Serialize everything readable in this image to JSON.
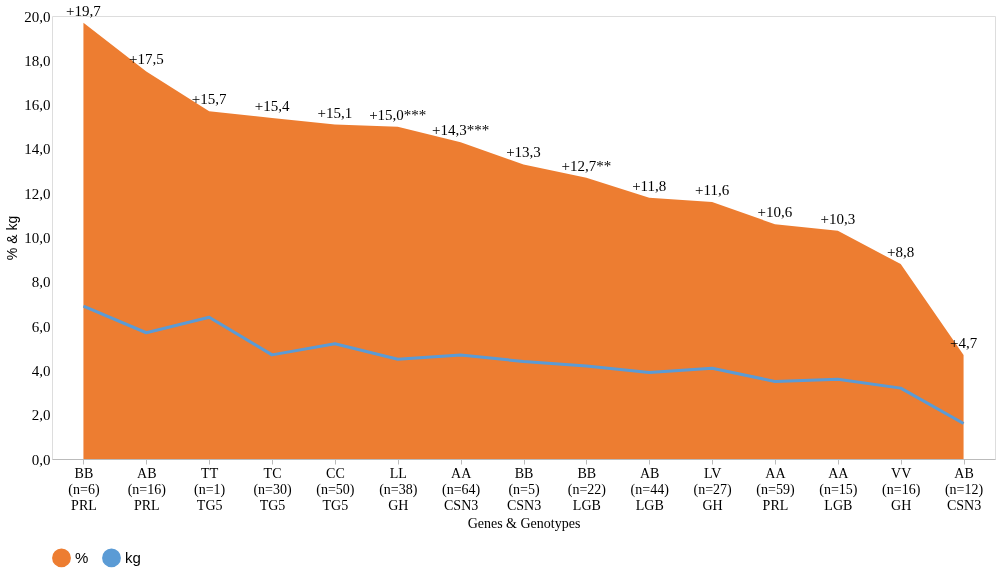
{
  "chart_data": {
    "type": "area",
    "xlabel": "Genes & Genotypes",
    "ylabel": "% & kg",
    "categories": [
      "BB (n=6) PRL",
      "AB (n=16) PRL",
      "TT (n=1) TG5",
      "TC (n=30) TG5",
      "CC (n=50) TG5",
      "LL (n=38) GH",
      "AA (n=64) CSN3",
      "BB (n=5) CSN3",
      "BB (n=22) LGB",
      "AB (n=44) LGB",
      "LV (n=27) GH",
      "AA (n=59) PRL",
      "AA (n=15) LGB",
      "VV (n=16) GH",
      "AB (n=12) CSN3"
    ],
    "series": [
      {
        "name": "%",
        "color": "#ed7d31",
        "values": [
          19.7,
          17.5,
          15.7,
          15.4,
          15.1,
          15.0,
          14.3,
          13.3,
          12.7,
          11.8,
          11.6,
          10.6,
          10.3,
          8.8,
          4.7
        ],
        "value_labels": [
          "+19,7",
          "+17,5",
          "+15,7",
          "+15,4",
          "+15,1",
          "+15,0***",
          "+14,3***",
          "+13,3",
          "+12,7**",
          "+11,8",
          "+11,6",
          "+10,6",
          "+10,3",
          "+8,8",
          "+4,7"
        ]
      },
      {
        "name": "kg",
        "type": "line",
        "color": "#5b9bd5",
        "values": [
          6.9,
          5.7,
          6.4,
          4.7,
          5.2,
          4.5,
          4.7,
          4.4,
          4.2,
          3.9,
          4.1,
          3.5,
          3.6,
          3.2,
          1.6
        ]
      }
    ],
    "ylim": [
      0,
      20
    ],
    "yticks": [
      {
        "value": 0,
        "label": "0,0"
      },
      {
        "value": 2,
        "label": "2,0"
      },
      {
        "value": 4,
        "label": "4,0"
      },
      {
        "value": 6,
        "label": "6,0"
      },
      {
        "value": 8,
        "label": "8,0"
      },
      {
        "value": 10,
        "label": "10,0"
      },
      {
        "value": 12,
        "label": "12,0"
      },
      {
        "value": 14,
        "label": "14,0"
      },
      {
        "value": 16,
        "label": "16,0"
      },
      {
        "value": 18,
        "label": "18,0"
      },
      {
        "value": 20,
        "label": "20,0"
      }
    ],
    "grid": false,
    "legend": "bottom"
  }
}
